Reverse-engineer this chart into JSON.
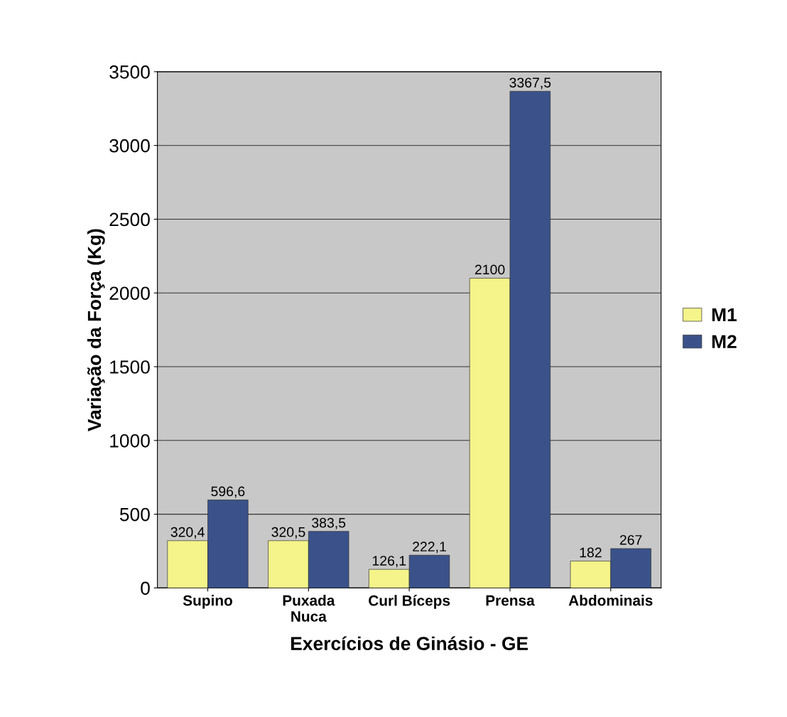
{
  "chart_data": {
    "type": "bar",
    "xlabel": "Exercícios de Ginásio - GE",
    "ylabel": "Variação da Força (Kg)",
    "categories": [
      "Supino",
      "Puxada\nNuca",
      "Curl Bíceps",
      "Prensa",
      "Abdominais"
    ],
    "series": [
      {
        "name": "M1",
        "color": "#f4f48a",
        "values": [
          320.4,
          320.5,
          126.1,
          2100,
          182
        ],
        "value_labels": [
          "320,4",
          "320,5",
          "126,1",
          "2100",
          "182"
        ]
      },
      {
        "name": "M2",
        "color": "#3a5289",
        "values": [
          596.6,
          383.5,
          222.1,
          3367.5,
          267
        ],
        "value_labels": [
          "596,6",
          "383,5",
          "222,1",
          "3367,5",
          "267"
        ]
      }
    ],
    "ylim": [
      0,
      3500
    ],
    "yticks": [
      0,
      500,
      1000,
      1500,
      2000,
      2500,
      3000,
      3500
    ],
    "grid": "y",
    "legend": "right"
  }
}
